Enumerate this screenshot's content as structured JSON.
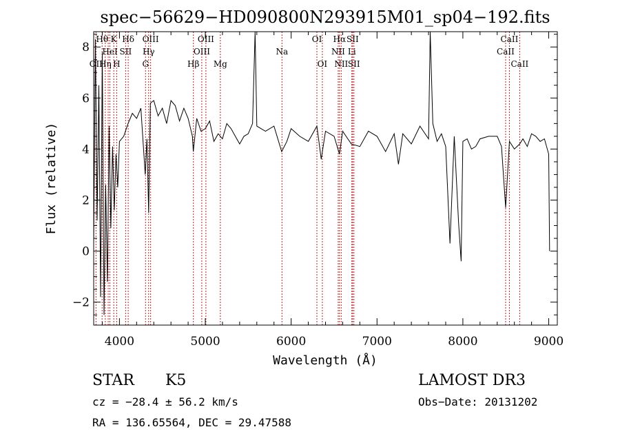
{
  "chart_data": {
    "type": "line",
    "title": "spec−56629−HD090800N293915M01_sp04−192.fits",
    "xlabel": "Wavelength (Å)",
    "ylabel": "Flux (relative)",
    "xlim": [
      3700,
      9100
    ],
    "ylim": [
      -2.9,
      8.6
    ],
    "xticks": [
      4000,
      5000,
      6000,
      7000,
      8000,
      9000
    ],
    "xtick_labels": [
      "4000",
      "5000",
      "6000",
      "7000",
      "8000",
      "9000"
    ],
    "yticks": [
      -2,
      0,
      2,
      4,
      6,
      8
    ],
    "ytick_labels": [
      "−2",
      "0",
      "2",
      "4",
      "6",
      "8"
    ],
    "grid": false,
    "series": [
      {
        "color": "#000000",
        "x": [
          3700,
          3720,
          3740,
          3760,
          3780,
          3800,
          3820,
          3840,
          3860,
          3880,
          3900,
          3920,
          3940,
          3960,
          3980,
          4000,
          4050,
          4100,
          4150,
          4200,
          4250,
          4300,
          4320,
          4340,
          4360,
          4400,
          4450,
          4500,
          4550,
          4600,
          4650,
          4700,
          4750,
          4800,
          4850,
          4860,
          4900,
          4950,
          5000,
          5050,
          5100,
          5150,
          5200,
          5250,
          5300,
          5350,
          5400,
          5450,
          5500,
          5550,
          5580,
          5600,
          5650,
          5700,
          5800,
          5890,
          5950,
          6000,
          6100,
          6200,
          6300,
          6350,
          6400,
          6500,
          6563,
          6600,
          6700,
          6800,
          6900,
          7000,
          7100,
          7200,
          7250,
          7300,
          7400,
          7500,
          7600,
          7620,
          7650,
          7700,
          7750,
          7800,
          7850,
          7900,
          7950,
          7980,
          8000,
          8050,
          8100,
          8150,
          8200,
          8300,
          8400,
          8450,
          8498,
          8542,
          8600,
          8662,
          8700,
          8750,
          8800,
          8850,
          8900,
          8950,
          9000,
          9010
        ],
        "y": [
          0.3,
          8.3,
          1.2,
          6.5,
          -1.8,
          7.8,
          -2.5,
          2.6,
          -1.2,
          4.9,
          0.9,
          4.1,
          1.6,
          3.8,
          2.5,
          4.3,
          4.5,
          5.0,
          5.4,
          5.2,
          5.6,
          3.0,
          4.4,
          1.5,
          5.8,
          5.9,
          5.3,
          5.6,
          5.0,
          5.9,
          5.7,
          5.1,
          5.6,
          5.2,
          4.5,
          3.9,
          5.2,
          4.7,
          4.8,
          5.1,
          4.3,
          4.6,
          4.4,
          5.0,
          4.8,
          4.5,
          4.2,
          4.5,
          4.6,
          5.0,
          8.6,
          4.9,
          4.8,
          4.7,
          4.9,
          3.9,
          4.3,
          4.8,
          4.5,
          4.3,
          4.9,
          3.6,
          4.7,
          4.5,
          3.8,
          4.7,
          4.2,
          4.1,
          4.7,
          4.5,
          3.9,
          4.6,
          3.4,
          4.6,
          4.2,
          4.9,
          4.4,
          8.6,
          5.0,
          4.3,
          4.6,
          4.1,
          0.3,
          4.5,
          1.1,
          -0.4,
          4.3,
          4.4,
          4.0,
          4.1,
          4.4,
          4.5,
          4.5,
          4.1,
          1.7,
          4.3,
          4.0,
          4.2,
          4.4,
          4.1,
          4.6,
          4.5,
          4.3,
          4.4,
          3.8,
          0.0
        ]
      }
    ],
    "lines": [
      {
        "x": 3727,
        "label": "OII",
        "row": 2
      },
      {
        "x": 3798,
        "label": "Hθ",
        "row": 0
      },
      {
        "x": 3835,
        "label": "Hη",
        "row": 2
      },
      {
        "x": 3869,
        "label": "",
        "row": 0
      },
      {
        "x": 3889,
        "label": "HeI",
        "row": 1
      },
      {
        "x": 3934,
        "label": "K",
        "row": 0
      },
      {
        "x": 3968,
        "label": "H",
        "row": 2
      },
      {
        "x": 4072,
        "label": "SII",
        "row": 1
      },
      {
        "x": 4102,
        "label": "Hδ",
        "row": 0
      },
      {
        "x": 4304,
        "label": "G",
        "row": 2
      },
      {
        "x": 4340,
        "label": "Hγ",
        "row": 1
      },
      {
        "x": 4363,
        "label": "OIII",
        "row": 0
      },
      {
        "x": 4861,
        "label": "Hβ",
        "row": 2
      },
      {
        "x": 4959,
        "label": "OIII",
        "row": 1
      },
      {
        "x": 5007,
        "label": "OIII",
        "row": 0
      },
      {
        "x": 5175,
        "label": "Mg",
        "row": 2
      },
      {
        "x": 5893,
        "label": "Na",
        "row": 1
      },
      {
        "x": 6300,
        "label": "OI",
        "row": 0
      },
      {
        "x": 6363,
        "label": "OI",
        "row": 2
      },
      {
        "x": 6548,
        "label": "NII",
        "row": 1
      },
      {
        "x": 6563,
        "label": "Hα",
        "row": 0
      },
      {
        "x": 6583,
        "label": "NII",
        "row": 2
      },
      {
        "x": 6707,
        "label": "Li",
        "row": 1
      },
      {
        "x": 6716,
        "label": "SII",
        "row": 0
      },
      {
        "x": 6731,
        "label": "SII",
        "row": 2
      },
      {
        "x": 8498,
        "label": "CaII",
        "row": 1
      },
      {
        "x": 8542,
        "label": "CaII",
        "row": 0
      },
      {
        "x": 8662,
        "label": "CaII",
        "row": 2
      }
    ]
  },
  "info": {
    "class_label": "STAR",
    "subclass": "K5",
    "survey": "LAMOST DR3",
    "cz": "cz = −28.4 ± 56.2 km/s",
    "obs_date": "Obs−Date: 20131202",
    "radec": "RA = 136.65564, DEC =  29.47588"
  }
}
